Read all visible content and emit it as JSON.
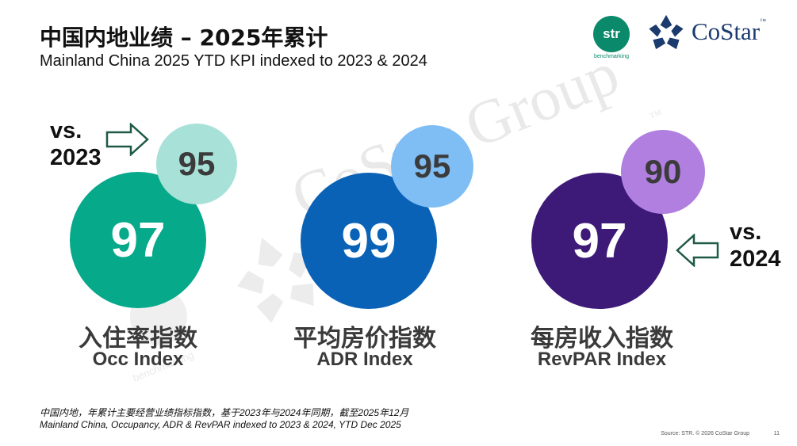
{
  "header": {
    "title": "中国内地业绩 – 2025年累计",
    "subtitle": "Mainland China 2025 YTD KPI indexed to 2023 & 2024"
  },
  "logos": {
    "str_text": "str",
    "str_sub": "benchmarking",
    "costar_text": "CoStar",
    "costar_tm": "™"
  },
  "watermark": {
    "text": "CoStar Group",
    "tm": "™",
    "sub": "benchmarking"
  },
  "comparisons": {
    "left": {
      "line1": "vs.",
      "line2": "2023"
    },
    "right": {
      "line1": "vs.",
      "line2": "2024"
    }
  },
  "kpis": [
    {
      "value": "97",
      "vs2023": "95",
      "label_cn": "入住率指数",
      "label_en": "Occ Index",
      "main_color": "#06a98a",
      "small_color": "#a8e1d8"
    },
    {
      "value": "99",
      "vs2023": "95",
      "label_cn": "平均房价指数",
      "label_en": "ADR Index",
      "main_color": "#0a62b7",
      "small_color": "#7fbdf5"
    },
    {
      "value": "97",
      "vs2023": "90",
      "label_cn": "每房收入指数",
      "label_en": "RevPAR Index",
      "main_color": "#3d1a78",
      "small_color": "#b07fe0"
    }
  ],
  "footnote": {
    "cn": "中国内地，年累计主要经营业绩指标指数，基于2023年与2024年同期，截至2025年12月",
    "en": "Mainland China, Occupancy, ADR & RevPAR indexed to 2023 & 2024, YTD Dec 2025"
  },
  "source": "Source: STR. © 2026 CoStar Group",
  "page_number": "11"
}
